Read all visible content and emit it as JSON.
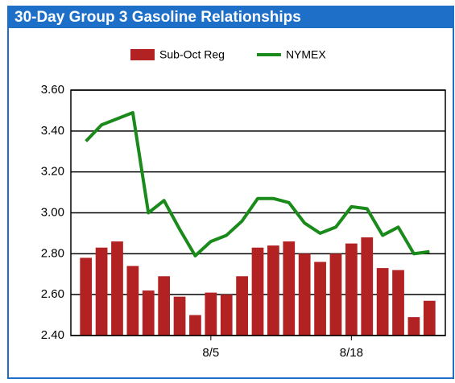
{
  "chart_data": {
    "type": "bar_line",
    "title": "30-Day Group 3 Gasoline Relationships",
    "categories": [
      null,
      null,
      null,
      null,
      null,
      null,
      null,
      null,
      "8/5",
      null,
      null,
      null,
      null,
      null,
      null,
      null,
      null,
      "8/18",
      null,
      null,
      null,
      null,
      null
    ],
    "series": [
      {
        "name": "Sub-Oct Reg",
        "color": "#b22222",
        "kind": "bar",
        "values": [
          2.78,
          2.83,
          2.86,
          2.74,
          2.62,
          2.69,
          2.59,
          2.5,
          2.61,
          2.6,
          2.69,
          2.83,
          2.84,
          2.86,
          2.8,
          2.76,
          2.8,
          2.85,
          2.88,
          2.73,
          2.72,
          2.49,
          2.57
        ]
      },
      {
        "name": "NYMEX",
        "color": "#1a8a1a",
        "kind": "line",
        "values": [
          3.35,
          3.43,
          3.46,
          3.49,
          3.0,
          3.06,
          2.92,
          2.79,
          2.86,
          2.89,
          2.96,
          3.07,
          3.07,
          3.05,
          2.95,
          2.9,
          2.93,
          3.03,
          3.02,
          2.89,
          2.93,
          2.8,
          2.81
        ]
      }
    ],
    "ylim": [
      2.4,
      3.6
    ],
    "yticks": [
      {
        "value": 2.4,
        "label": "2.40"
      },
      {
        "value": 2.6,
        "label": "2.60"
      },
      {
        "value": 2.8,
        "label": "2.80"
      },
      {
        "value": 3.0,
        "label": "3.00"
      },
      {
        "value": 3.2,
        "label": "3.20"
      },
      {
        "value": 3.4,
        "label": "3.40"
      },
      {
        "value": 3.6,
        "label": "3.60"
      }
    ],
    "grid": true
  }
}
